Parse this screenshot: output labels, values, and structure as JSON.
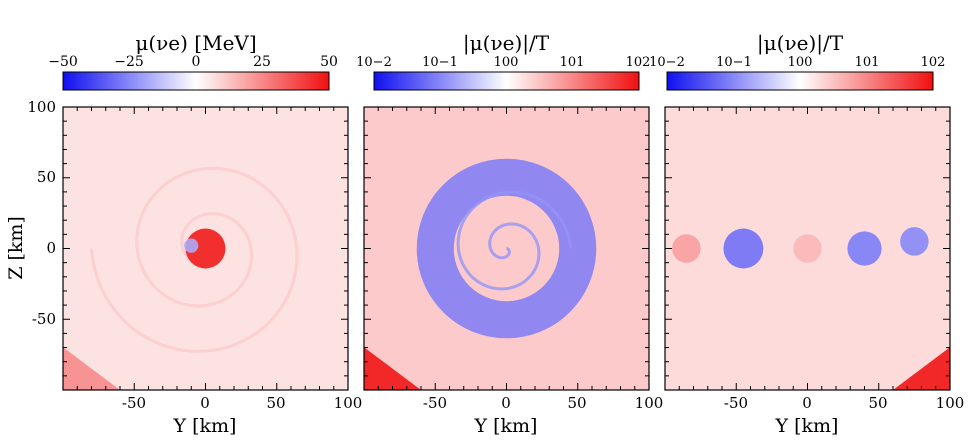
{
  "axes": {
    "xlabel": "Y [km]",
    "ylabel": "Z [km]",
    "xlim": [
      -100,
      100
    ],
    "ylim": [
      -100,
      100
    ],
    "x_ticks": [
      -50,
      0,
      50,
      100
    ],
    "x_tick_labels": [
      "-50",
      "0",
      "50",
      "100"
    ],
    "y_ticks": [
      -50,
      0,
      50,
      100
    ],
    "y_tick_labels": [
      "-50",
      "0",
      "50",
      "100"
    ]
  },
  "chart_data": [
    {
      "type": "heatmap",
      "colorbar": {
        "label": "μ(νe) [MeV]",
        "scale": "linear",
        "range": [
          -50,
          50
        ],
        "tick_labels": [
          "−50",
          "−25",
          "0",
          "25",
          "50"
        ],
        "colors": [
          "#1010f0",
          "#ffffff",
          "#f01010"
        ]
      },
      "xlabel": "Y [km]",
      "ylabel": "Z [km]",
      "xlim": [
        -100,
        100
      ],
      "ylim": [
        -100,
        100
      ],
      "background_level": 0.12,
      "features": [
        {
          "shape": "spiral",
          "center": [
            0,
            0
          ],
          "level": 0.22,
          "turns": 2.5,
          "r_max": 80
        },
        {
          "shape": "blob",
          "center": [
            0,
            0
          ],
          "radius": 14,
          "level": 0.95
        },
        {
          "shape": "blob",
          "center": [
            -10,
            2
          ],
          "radius": 5,
          "level": -0.35
        },
        {
          "shape": "corner",
          "center": [
            -100,
            -100
          ],
          "level": 0.45
        }
      ]
    },
    {
      "type": "heatmap",
      "colorbar": {
        "label": "|μ(νe)|/T",
        "scale": "log",
        "range": [
          0.01,
          100
        ],
        "tick_labels": [
          "10−2",
          "10−1",
          "100",
          "101",
          "102"
        ],
        "colors": [
          "#1010f0",
          "#ffffff",
          "#f01010"
        ]
      },
      "xlabel": "Y [km]",
      "xlim": [
        -100,
        100
      ],
      "ylim": [
        -100,
        100
      ],
      "background_level": 0.22,
      "features": [
        {
          "shape": "ring",
          "center": [
            0,
            0
          ],
          "radius": 50,
          "level": -0.55
        },
        {
          "shape": "spiral",
          "center": [
            0,
            0
          ],
          "level": -0.45,
          "turns": 2.0,
          "r_max": 45
        },
        {
          "shape": "corner",
          "center": [
            -100,
            -100
          ],
          "level": 0.9
        }
      ]
    },
    {
      "type": "heatmap",
      "colorbar": {
        "label": "|μ(νe)|/T",
        "scale": "log",
        "range": [
          0.01,
          100
        ],
        "tick_labels": [
          "10−2",
          "10−1",
          "100",
          "101",
          "102"
        ],
        "colors": [
          "#1010f0",
          "#ffffff",
          "#f01010"
        ]
      },
      "xlabel": "Y [km]",
      "xlim": [
        -100,
        100
      ],
      "ylim": [
        -100,
        100
      ],
      "background_level": 0.15,
      "features": [
        {
          "shape": "blob",
          "center": [
            -45,
            0
          ],
          "radius": 14,
          "level": -0.6
        },
        {
          "shape": "blob",
          "center": [
            40,
            0
          ],
          "radius": 12,
          "level": -0.55
        },
        {
          "shape": "blob",
          "center": [
            75,
            5
          ],
          "radius": 10,
          "level": -0.5
        },
        {
          "shape": "blob",
          "center": [
            0,
            0
          ],
          "radius": 10,
          "level": 0.3
        },
        {
          "shape": "blob",
          "center": [
            -85,
            0
          ],
          "radius": 10,
          "level": 0.4
        },
        {
          "shape": "corner",
          "center": [
            100,
            -100
          ],
          "level": 0.9
        }
      ]
    }
  ]
}
